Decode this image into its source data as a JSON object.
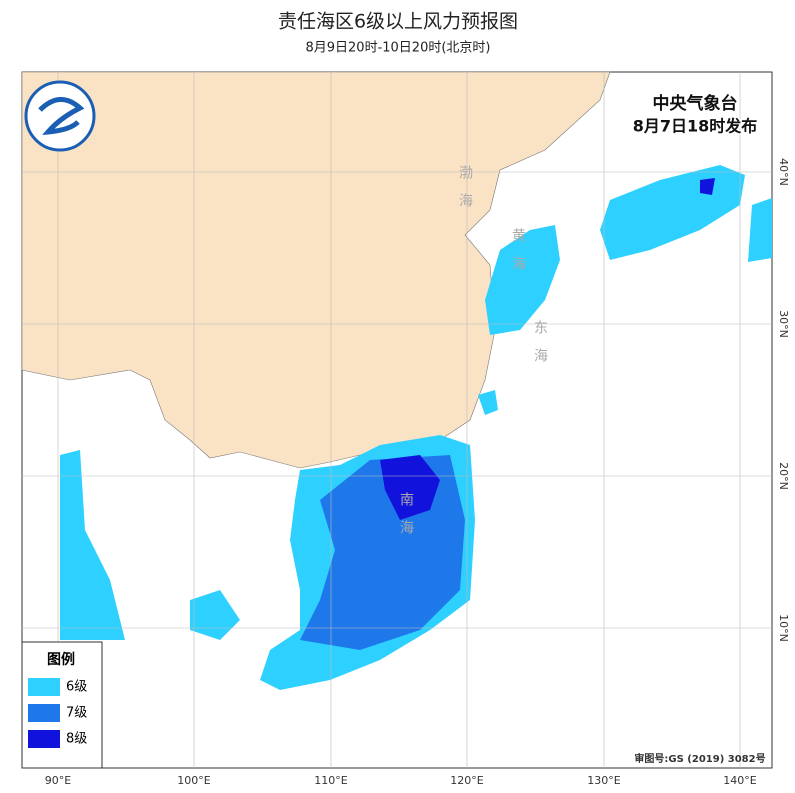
{
  "header": {
    "title": "责任海区6级以上风力预报图",
    "subtitle": "8月9日20时-10日20时(北京时)"
  },
  "issuer": {
    "name": "中央气象台",
    "time": "8月7日18时发布"
  },
  "legend": {
    "title": "图例",
    "items": [
      "6级",
      "7级",
      "8级"
    ]
  },
  "lon_labels": [
    "90°E",
    "100°E",
    "110°E",
    "120°E",
    "130°E",
    "140°E"
  ],
  "lat_labels": [
    "40°N",
    "30°N",
    "20°N",
    "10°N"
  ],
  "seas": [
    "渤海",
    "黄海",
    "东海",
    "南海"
  ],
  "approval": "审图号:GS (2019) 3082号"
}
